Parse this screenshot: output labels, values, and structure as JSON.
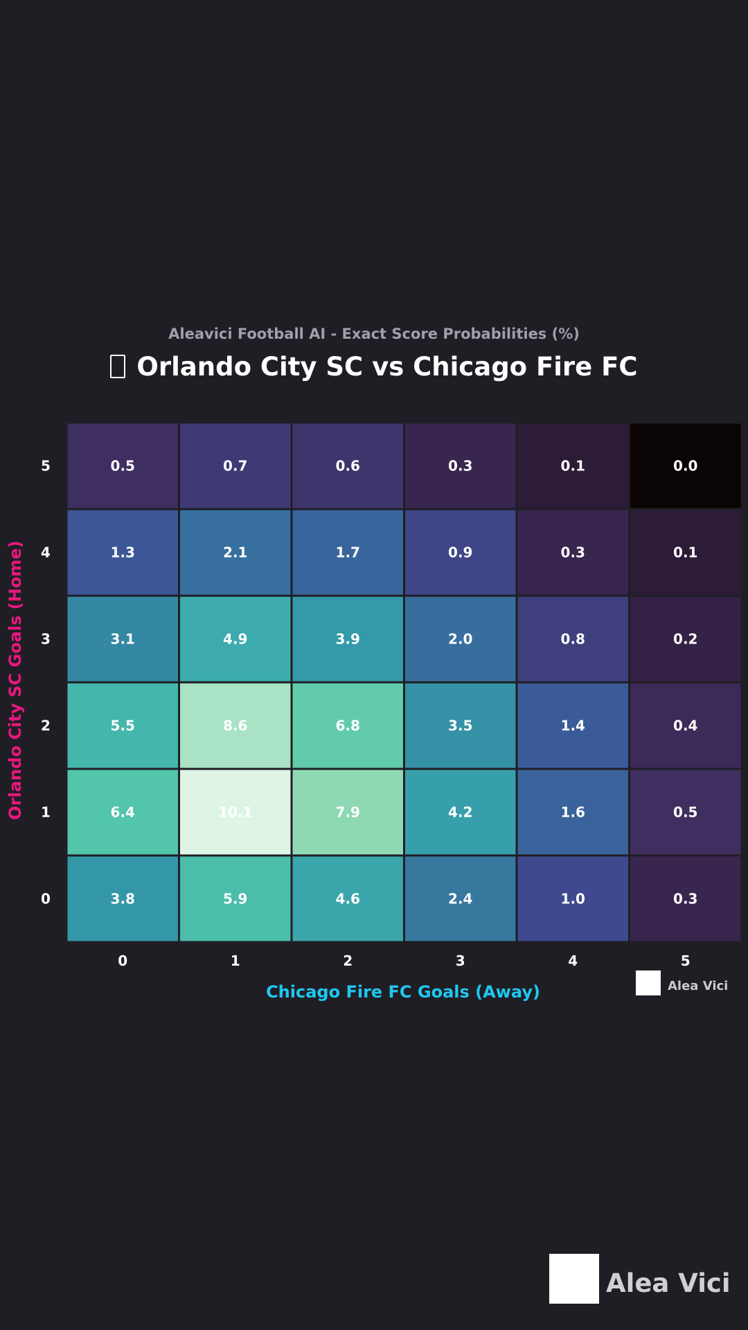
{
  "header": {
    "subtitle": "Aleavici Football AI - Exact Score Probabilities (%)",
    "title": "Orlando City SC vs Chicago Fire FC",
    "title_icon": "football-icon"
  },
  "legend": {
    "label": "Alea Vici",
    "swatch_color": "#ffffff"
  },
  "watermark": {
    "text": "Alea Vici"
  },
  "colors": {
    "background": "#1f1e24",
    "xlabel": "#1ec8f0",
    "ylabel": "#e8177f",
    "colormap": "mako"
  },
  "chart_data": {
    "type": "heatmap",
    "title": "Orlando City SC vs Chicago Fire FC",
    "subtitle": "Aleavici Football AI - Exact Score Probabilities (%)",
    "xlabel": "Chicago Fire FC Goals (Away)",
    "ylabel": "Orlando City SC Goals (Home)",
    "x_categories": [
      "0",
      "1",
      "2",
      "3",
      "4",
      "5"
    ],
    "y_categories": [
      "0",
      "1",
      "2",
      "3",
      "4",
      "5"
    ],
    "values": [
      [
        3.8,
        5.9,
        4.6,
        2.4,
        1.0,
        0.3
      ],
      [
        6.4,
        10.1,
        7.9,
        4.2,
        1.6,
        0.5
      ],
      [
        5.5,
        8.6,
        6.8,
        3.5,
        1.4,
        0.4
      ],
      [
        3.1,
        4.9,
        3.9,
        2.0,
        0.8,
        0.2
      ],
      [
        1.3,
        2.1,
        1.7,
        0.9,
        0.3,
        0.1
      ],
      [
        0.5,
        0.7,
        0.6,
        0.3,
        0.1,
        0.0
      ]
    ],
    "value_range": [
      0.0,
      10.1
    ],
    "legend": "bottom-right"
  }
}
